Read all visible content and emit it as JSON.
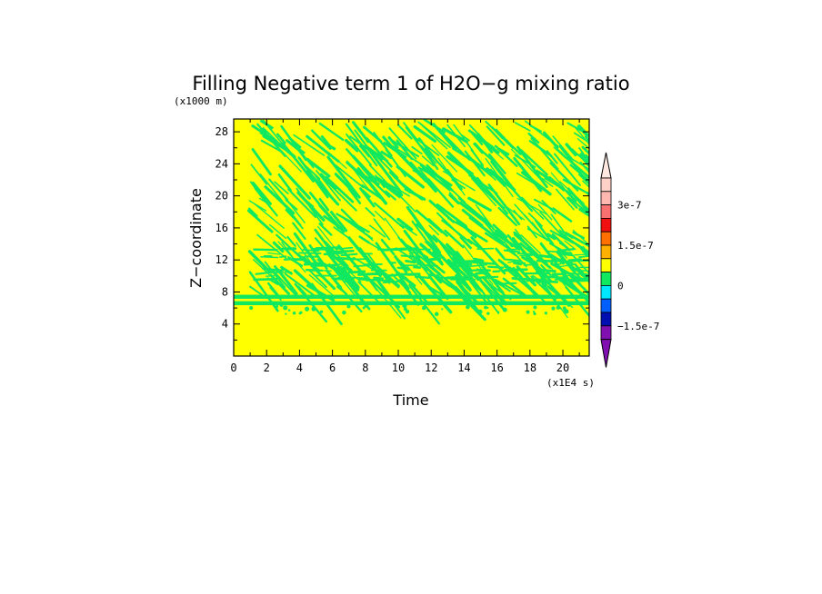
{
  "chart_data": {
    "type": "heatmap",
    "title": "Filling Negative term 1 of H2O−g mixing ratio",
    "xlabel": "Time",
    "ylabel": "Z−coordinate",
    "x_unit": "(x1E4 s)",
    "y_unit": "(x1000 m)",
    "xlim": [
      0,
      21.6
    ],
    "ylim": [
      0,
      29.6
    ],
    "x_ticks": [
      "0",
      "2",
      "4",
      "6",
      "8",
      "10",
      "12",
      "14",
      "16",
      "18",
      "20"
    ],
    "x_minor_ticks": [
      1,
      3,
      5,
      7,
      9,
      11,
      13,
      15,
      17,
      19,
      21
    ],
    "y_ticks": [
      "4",
      "8",
      "12",
      "16",
      "20",
      "24",
      "28"
    ],
    "y_minor_ticks": [
      2,
      6,
      10,
      14,
      18,
      22,
      26
    ],
    "background_level_color": "#ffff00",
    "field_description_levels": {
      "dominant": "0 (yellow)",
      "streaks": "slightly negative (green)"
    },
    "horizontal_bands_km": [
      {
        "z": 7.4,
        "x_start": 0,
        "x_end": 21.6
      },
      {
        "z": 6.6,
        "x_start": 0,
        "x_end": 21.6
      }
    ],
    "colorbar": {
      "tick_labels": [
        "3e-7",
        "1.5e-7",
        "0",
        "−1.5e-7"
      ],
      "levels_top_to_bottom": [
        "#ffd0c8",
        "#ffb8b0",
        "#f87070",
        "#f01010",
        "#ff7000",
        "#ffb000",
        "#ffff00",
        "#10e860",
        "#00e8ff",
        "#0060ff",
        "#0010b0",
        "#8010b0"
      ],
      "over_color": "#ffe8e0",
      "under_color": "#8010b0"
    }
  }
}
